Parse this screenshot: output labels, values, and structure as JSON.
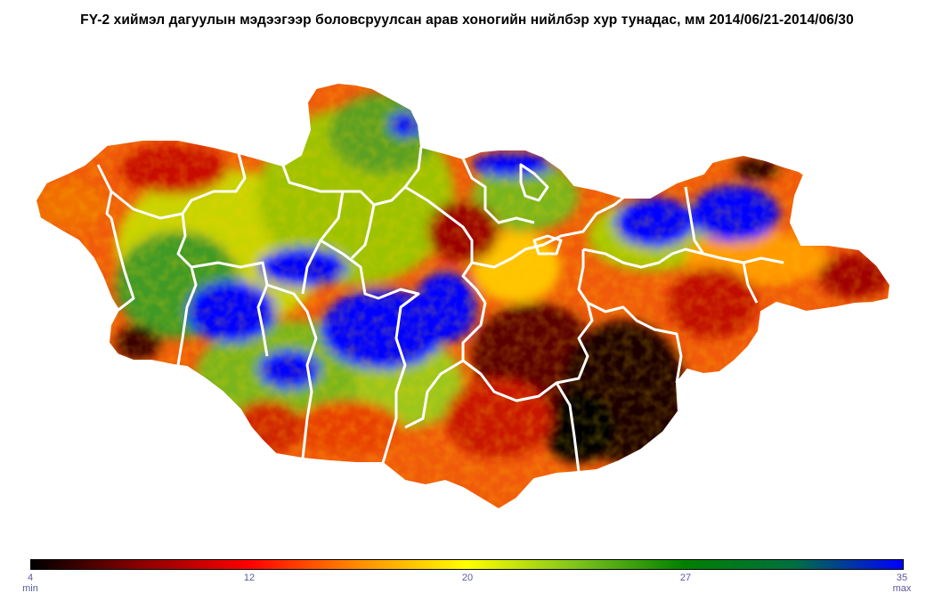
{
  "title": "FY-2  хиймэл дагуулын мэдээгээр боловсруулсан арав хоногийн нийлбэр хур тунадас, мм 2014/06/21-2014/06/30",
  "legend": {
    "colors": [
      "#000000",
      "#8b0000",
      "#ff0000",
      "#ff8c00",
      "#ffff00",
      "#7fc31c",
      "#008000",
      "#007040",
      "#0000ff"
    ],
    "ticks": [
      "4",
      "12",
      "20",
      "27",
      "35"
    ],
    "min_label": "min",
    "max_label": "max"
  },
  "map": {
    "background": "#ffffff",
    "boundary_color": "#ffffff"
  }
}
